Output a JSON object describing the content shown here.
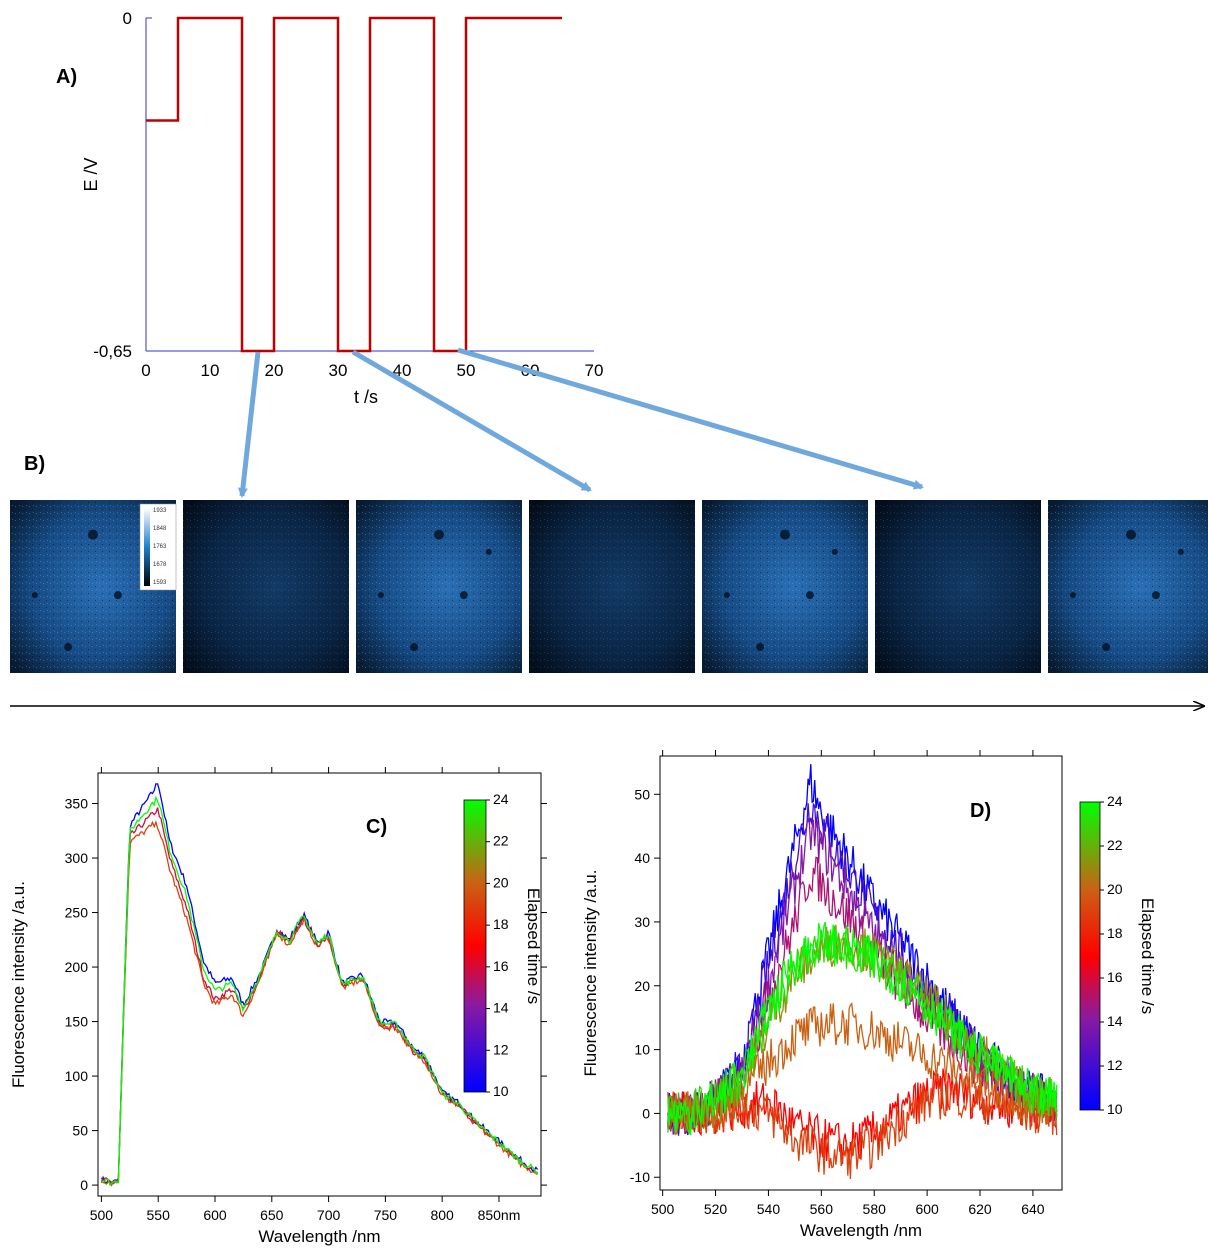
{
  "colors": {
    "trace_red": "#c00000",
    "axis_blue": "#3333cc",
    "arrow_blue": "#6fa8dc",
    "frame_bright": "#1f5f9f",
    "frame_dim": "#0f2f55",
    "scale_start": "#0000ff",
    "scale_mid1": "#8b1aa0",
    "scale_mid2": "#ff0000",
    "scale_mid3": "#c86414",
    "scale_end": "#00ff00"
  },
  "panels": {
    "A": {
      "label": "A)"
    },
    "B": {
      "label": "B)",
      "colorbar_ticks": [
        "1933",
        "1848",
        "1763",
        "1678",
        "1593"
      ],
      "frames": [
        "bright",
        "dim",
        "bright",
        "dim",
        "bright",
        "dim",
        "bright"
      ]
    },
    "C": {
      "label": "C)"
    },
    "D": {
      "label": "D)"
    }
  },
  "chart_data": [
    {
      "id": "A",
      "type": "line",
      "xlabel": "t /s",
      "ylabel": "E /V",
      "xlim": [
        0,
        70
      ],
      "ylim": [
        -0.65,
        0
      ],
      "xticks": [
        "0",
        "10",
        "20",
        "30",
        "40",
        "50",
        "60",
        "70"
      ],
      "yticks": [
        "0",
        "-0,65"
      ],
      "series": [
        {
          "x": [
            0,
            5,
            5,
            15,
            15,
            20,
            20,
            30,
            30,
            35,
            35,
            45,
            45,
            50,
            50,
            65
          ],
          "y": [
            -0.2,
            -0.2,
            0,
            0,
            -0.65,
            -0.65,
            0,
            0,
            -0.65,
            -0.65,
            0,
            0,
            -0.65,
            -0.65,
            0,
            0
          ]
        }
      ]
    },
    {
      "id": "C",
      "type": "line",
      "xlabel": "Wavelength /nm",
      "ylabel": "Fluorescence intensity /a.u.",
      "colorbar_label": "Elapsed time /s",
      "xlim": [
        497,
        887
      ],
      "ylim": [
        -10,
        378
      ],
      "xticks": [
        "500",
        "550",
        "600",
        "650",
        "700",
        "750",
        "800",
        "850nm"
      ],
      "yticks": [
        "0",
        "50",
        "100",
        "150",
        "200",
        "250",
        "300",
        "350"
      ],
      "colorbar_ticks": [
        "24",
        "22",
        "20",
        "18",
        "16",
        "14",
        "12",
        "10"
      ],
      "colorbar_range": [
        10,
        24
      ],
      "series": [
        {
          "time": 10,
          "x": [
            500,
            510,
            515,
            520,
            525,
            535,
            545,
            550,
            560,
            575,
            590,
            600,
            615,
            625,
            640,
            655,
            665,
            678,
            690,
            700,
            712,
            730,
            745,
            760,
            775,
            785,
            800,
            815,
            830,
            850,
            870,
            885
          ],
          "y": [
            5,
            2,
            5,
            180,
            330,
            345,
            360,
            370,
            315,
            275,
            205,
            185,
            190,
            165,
            195,
            235,
            225,
            248,
            222,
            232,
            185,
            193,
            150,
            148,
            125,
            118,
            85,
            75,
            58,
            40,
            22,
            12
          ]
        },
        {
          "time": 16,
          "x": [
            500,
            510,
            515,
            520,
            525,
            535,
            545,
            550,
            560,
            575,
            590,
            600,
            615,
            625,
            640,
            655,
            665,
            678,
            690,
            700,
            712,
            730,
            745,
            760,
            775,
            785,
            800,
            815,
            830,
            850,
            870,
            885
          ],
          "y": [
            5,
            2,
            5,
            175,
            320,
            330,
            340,
            345,
            300,
            255,
            190,
            170,
            180,
            160,
            192,
            233,
            222,
            245,
            220,
            229,
            182,
            190,
            147,
            145,
            122,
            115,
            83,
            73,
            56,
            38,
            20,
            11
          ]
        },
        {
          "time": 19,
          "x": [
            500,
            510,
            515,
            520,
            525,
            535,
            545,
            550,
            560,
            575,
            590,
            600,
            615,
            625,
            640,
            655,
            665,
            678,
            690,
            700,
            712,
            730,
            745,
            760,
            775,
            785,
            800,
            815,
            830,
            850,
            870,
            885
          ],
          "y": [
            5,
            2,
            5,
            172,
            315,
            322,
            330,
            330,
            290,
            245,
            185,
            165,
            175,
            155,
            190,
            232,
            220,
            244,
            219,
            228,
            181,
            189,
            146,
            144,
            121,
            114,
            82,
            72,
            55,
            37,
            19,
            10
          ]
        },
        {
          "time": 24,
          "x": [
            500,
            510,
            515,
            520,
            525,
            535,
            545,
            550,
            560,
            575,
            590,
            600,
            615,
            625,
            640,
            655,
            665,
            678,
            690,
            700,
            712,
            730,
            745,
            760,
            775,
            785,
            800,
            815,
            830,
            850,
            870,
            885
          ],
          "y": [
            5,
            2,
            5,
            178,
            325,
            338,
            350,
            355,
            308,
            265,
            198,
            178,
            185,
            162,
            194,
            234,
            224,
            247,
            221,
            231,
            184,
            192,
            149,
            147,
            124,
            117,
            84,
            74,
            57,
            39,
            21,
            12
          ]
        }
      ]
    },
    {
      "id": "D",
      "type": "line",
      "xlabel": "Wavelength /nm",
      "ylabel": "Fluorescence intensity /a.u.",
      "colorbar_label": "Elapsed time /s",
      "xlim": [
        499,
        651
      ],
      "ylim": [
        -12,
        56
      ],
      "xticks": [
        "500",
        "520",
        "540",
        "560",
        "580",
        "600",
        "620",
        "640"
      ],
      "yticks": [
        "-10",
        "0",
        "10",
        "20",
        "30",
        "40",
        "50"
      ],
      "colorbar_ticks": [
        "24",
        "22",
        "20",
        "18",
        "16",
        "14",
        "12",
        "10"
      ],
      "colorbar_range": [
        10,
        24
      ],
      "series": [
        {
          "time": 10,
          "x": [
            500,
            510,
            520,
            530,
            540,
            550,
            556,
            560,
            570,
            580,
            590,
            600,
            610,
            620,
            630,
            640,
            650
          ],
          "y": [
            0,
            0,
            2,
            8,
            25,
            42,
            52,
            47,
            40,
            33,
            27,
            21,
            15,
            10,
            6,
            3,
            2
          ]
        },
        {
          "time": 12,
          "x": [
            500,
            510,
            520,
            530,
            540,
            550,
            556,
            560,
            570,
            580,
            590,
            600,
            610,
            620,
            630,
            640,
            650
          ],
          "y": [
            0,
            0,
            2,
            7,
            23,
            40,
            49,
            45,
            38,
            31,
            25,
            19,
            14,
            9,
            5,
            3,
            2
          ]
        },
        {
          "time": 14,
          "x": [
            500,
            510,
            520,
            530,
            540,
            550,
            556,
            560,
            570,
            580,
            590,
            600,
            610,
            620,
            630,
            640,
            650
          ],
          "y": [
            0,
            0,
            2,
            6,
            20,
            36,
            44,
            42,
            35,
            28,
            22,
            17,
            12,
            8,
            5,
            3,
            2
          ]
        },
        {
          "time": 15,
          "x": [
            500,
            510,
            520,
            530,
            540,
            550,
            556,
            560,
            570,
            580,
            590,
            600,
            610,
            620,
            630,
            640,
            650
          ],
          "y": [
            0,
            0,
            2,
            5,
            18,
            30,
            38,
            36,
            31,
            25,
            20,
            15,
            11,
            7,
            4,
            2,
            1
          ]
        },
        {
          "time": 17,
          "x": [
            500,
            510,
            520,
            530,
            540,
            550,
            560,
            570,
            580,
            590,
            600,
            610,
            620,
            630,
            640,
            650
          ],
          "y": [
            0,
            0,
            0,
            1,
            2,
            -2,
            -4,
            -5,
            -3,
            0,
            3,
            4,
            2,
            1,
            1,
            0
          ]
        },
        {
          "time": 19,
          "x": [
            500,
            510,
            520,
            530,
            540,
            550,
            560,
            570,
            580,
            590,
            600,
            610,
            620,
            630,
            640,
            650
          ],
          "y": [
            0,
            0,
            0,
            1,
            0,
            -4,
            -6,
            -7,
            -5,
            -1,
            2,
            3,
            2,
            1,
            0,
            0
          ]
        },
        {
          "time": 20,
          "x": [
            500,
            510,
            520,
            530,
            540,
            550,
            560,
            570,
            580,
            590,
            600,
            610,
            620,
            630,
            640,
            650
          ],
          "y": [
            0,
            0,
            1,
            3,
            8,
            12,
            14,
            14,
            13,
            11,
            9,
            7,
            5,
            3,
            2,
            1
          ]
        },
        {
          "time": 21,
          "x": [
            500,
            510,
            520,
            530,
            540,
            550,
            560,
            570,
            580,
            590,
            600,
            610,
            620,
            630,
            640,
            650
          ],
          "y": [
            0,
            0,
            1,
            5,
            14,
            22,
            26,
            27,
            25,
            22,
            18,
            14,
            10,
            6,
            3,
            2
          ]
        },
        {
          "time": 23,
          "x": [
            500,
            510,
            520,
            530,
            540,
            550,
            560,
            570,
            580,
            590,
            600,
            610,
            620,
            630,
            640,
            650
          ],
          "y": [
            0,
            0,
            2,
            6,
            15,
            23,
            26,
            26,
            24,
            21,
            17,
            13,
            9,
            6,
            3,
            2
          ]
        },
        {
          "time": 24,
          "x": [
            500,
            510,
            520,
            530,
            540,
            550,
            560,
            570,
            580,
            590,
            600,
            610,
            620,
            630,
            640,
            650
          ],
          "y": [
            0,
            0,
            2,
            6,
            16,
            24,
            27,
            26,
            24,
            21,
            17,
            13,
            9,
            6,
            3,
            2
          ]
        }
      ]
    }
  ]
}
